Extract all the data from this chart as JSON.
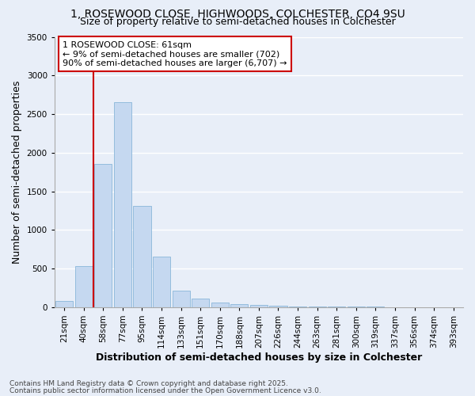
{
  "title1": "1, ROSEWOOD CLOSE, HIGHWOODS, COLCHESTER, CO4 9SU",
  "title2": "Size of property relative to semi-detached houses in Colchester",
  "xlabel": "Distribution of semi-detached houses by size in Colchester",
  "ylabel": "Number of semi-detached properties",
  "footnote1": "Contains HM Land Registry data © Crown copyright and database right 2025.",
  "footnote2": "Contains public sector information licensed under the Open Government Licence v3.0.",
  "annotation_title": "1 ROSEWOOD CLOSE: 61sqm",
  "annotation_line2": "← 9% of semi-detached houses are smaller (702)",
  "annotation_line3": "90% of semi-detached houses are larger (6,707) →",
  "categories": [
    "21sqm",
    "40sqm",
    "58sqm",
    "77sqm",
    "95sqm",
    "114sqm",
    "133sqm",
    "151sqm",
    "170sqm",
    "188sqm",
    "207sqm",
    "226sqm",
    "244sqm",
    "263sqm",
    "281sqm",
    "300sqm",
    "319sqm",
    "337sqm",
    "356sqm",
    "374sqm",
    "393sqm"
  ],
  "values": [
    75,
    530,
    1850,
    2650,
    1310,
    650,
    210,
    110,
    60,
    40,
    30,
    20,
    12,
    8,
    5,
    4,
    3,
    2,
    2,
    1,
    1
  ],
  "bar_color": "#c5d8f0",
  "bar_edge_color": "#7aadd4",
  "annotation_box_color": "#ffffff",
  "annotation_box_edge": "#cc0000",
  "vline_color": "#cc0000",
  "vline_x": 1.5,
  "ylim": [
    0,
    3500
  ],
  "yticks": [
    0,
    500,
    1000,
    1500,
    2000,
    2500,
    3000,
    3500
  ],
  "bg_color": "#e8eef8",
  "grid_color": "#ffffff",
  "title_fontsize": 10,
  "subtitle_fontsize": 9,
  "axis_label_fontsize": 9,
  "tick_fontsize": 7.5,
  "annotation_fontsize": 8,
  "footnote_fontsize": 6.5
}
